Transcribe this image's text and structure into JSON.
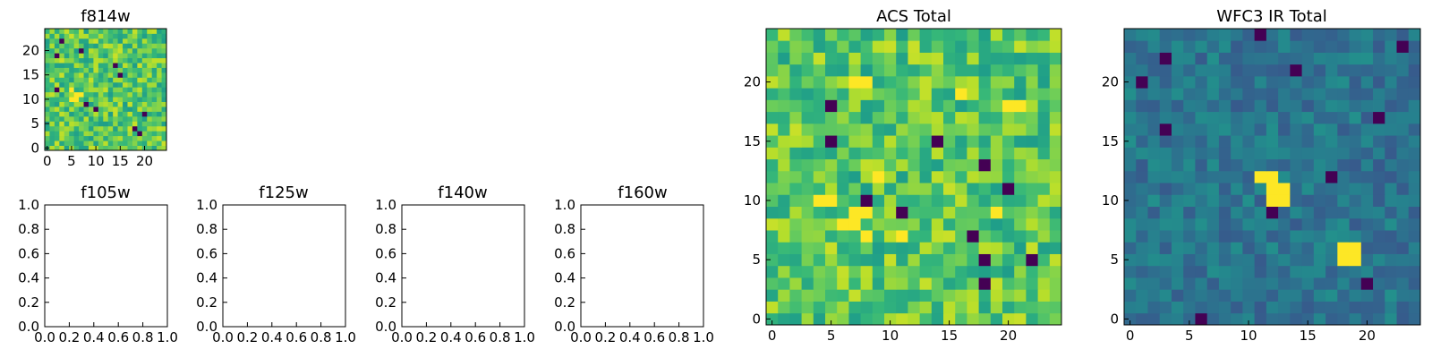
{
  "colormap": "viridis",
  "chart_data": [
    {
      "type": "heatmap",
      "title": "f814w",
      "grid_size": 25,
      "xlim": [
        -0.5,
        24.5
      ],
      "ylim": [
        -0.5,
        24.5
      ],
      "x_ticks": [
        0,
        5,
        10,
        15,
        20
      ],
      "y_ticks": [
        0,
        5,
        10,
        15,
        20
      ],
      "value_range": [
        0,
        1
      ],
      "seed": 7,
      "values_note": "noise",
      "low_cells": [
        [
          3,
          22
        ],
        [
          2,
          19
        ],
        [
          10,
          8
        ],
        [
          8,
          9
        ],
        [
          14,
          17
        ],
        [
          15,
          15
        ],
        [
          19,
          3
        ],
        [
          18,
          4
        ],
        [
          20,
          7
        ],
        [
          2,
          12
        ],
        [
          7,
          20
        ]
      ],
      "high_cells": [
        [
          5,
          10
        ],
        [
          6,
          10
        ],
        [
          7,
          11
        ],
        [
          6,
          11
        ],
        [
          5,
          12
        ]
      ]
    },
    {
      "type": "empty",
      "title": "f105w",
      "xlim": [
        0,
        1
      ],
      "ylim": [
        0,
        1
      ],
      "x_ticks": [
        "0.0",
        "0.2",
        "0.4",
        "0.6",
        "0.8",
        "1.0"
      ],
      "y_ticks": [
        "0.0",
        "0.2",
        "0.4",
        "0.6",
        "0.8",
        "1.0"
      ]
    },
    {
      "type": "empty",
      "title": "f125w",
      "xlim": [
        0,
        1
      ],
      "ylim": [
        0,
        1
      ],
      "x_ticks": [
        "0.0",
        "0.2",
        "0.4",
        "0.6",
        "0.8",
        "1.0"
      ],
      "y_ticks": [
        "0.0",
        "0.2",
        "0.4",
        "0.6",
        "0.8",
        "1.0"
      ]
    },
    {
      "type": "empty",
      "title": "f140w",
      "xlim": [
        0,
        1
      ],
      "ylim": [
        0,
        1
      ],
      "x_ticks": [
        "0.0",
        "0.2",
        "0.4",
        "0.6",
        "0.8",
        "1.0"
      ],
      "y_ticks": [
        "0.0",
        "0.2",
        "0.4",
        "0.6",
        "0.8",
        "1.0"
      ]
    },
    {
      "type": "empty",
      "title": "f160w",
      "xlim": [
        0,
        1
      ],
      "ylim": [
        0,
        1
      ],
      "x_ticks": [
        "0.0",
        "0.2",
        "0.4",
        "0.6",
        "0.8",
        "1.0"
      ],
      "y_ticks": [
        "0.0",
        "0.2",
        "0.4",
        "0.6",
        "0.8",
        "1.0"
      ]
    },
    {
      "type": "heatmap",
      "title": "ACS Total",
      "grid_size": 25,
      "xlim": [
        -0.5,
        24.5
      ],
      "ylim": [
        -0.5,
        24.5
      ],
      "x_ticks": [
        0,
        5,
        10,
        15,
        20
      ],
      "y_ticks": [
        0,
        5,
        10,
        15,
        20
      ],
      "value_range": [
        0,
        1
      ],
      "seed": 31,
      "low_cells": [
        [
          5,
          18
        ],
        [
          5,
          15
        ],
        [
          14,
          15
        ],
        [
          18,
          13
        ],
        [
          20,
          11
        ],
        [
          11,
          9
        ],
        [
          18,
          5
        ],
        [
          18,
          3
        ],
        [
          22,
          5
        ],
        [
          8,
          10
        ],
        [
          17,
          7
        ]
      ],
      "high_cells": [
        [
          7,
          20
        ],
        [
          8,
          20
        ],
        [
          4,
          10
        ],
        [
          5,
          10
        ],
        [
          7,
          9
        ],
        [
          8,
          9
        ],
        [
          6,
          8
        ],
        [
          7,
          8
        ],
        [
          8,
          7
        ],
        [
          9,
          12
        ],
        [
          19,
          9
        ],
        [
          11,
          7
        ],
        [
          20,
          18
        ],
        [
          21,
          18
        ],
        [
          16,
          19
        ]
      ]
    },
    {
      "type": "heatmap",
      "title": "WFC3 IR Total",
      "grid_size": 25,
      "xlim": [
        -0.5,
        24.5
      ],
      "ylim": [
        -0.5,
        24.5
      ],
      "x_ticks": [
        0,
        5,
        10,
        15,
        20
      ],
      "y_ticks": [
        0,
        5,
        10,
        15,
        20
      ],
      "value_range": [
        0,
        1
      ],
      "seed": 53,
      "low_cells": [
        [
          1,
          20
        ],
        [
          3,
          22
        ],
        [
          11,
          24
        ],
        [
          14,
          21
        ],
        [
          21,
          17
        ],
        [
          23,
          23
        ],
        [
          12,
          9
        ],
        [
          6,
          0
        ],
        [
          20,
          3
        ],
        [
          17,
          12
        ],
        [
          3,
          16
        ]
      ],
      "high_cells": [
        [
          11,
          12
        ],
        [
          12,
          12
        ],
        [
          12,
          11
        ],
        [
          13,
          11
        ],
        [
          12,
          10
        ],
        [
          13,
          10
        ],
        [
          18,
          6
        ],
        [
          19,
          6
        ],
        [
          18,
          5
        ],
        [
          19,
          5
        ]
      ]
    }
  ]
}
